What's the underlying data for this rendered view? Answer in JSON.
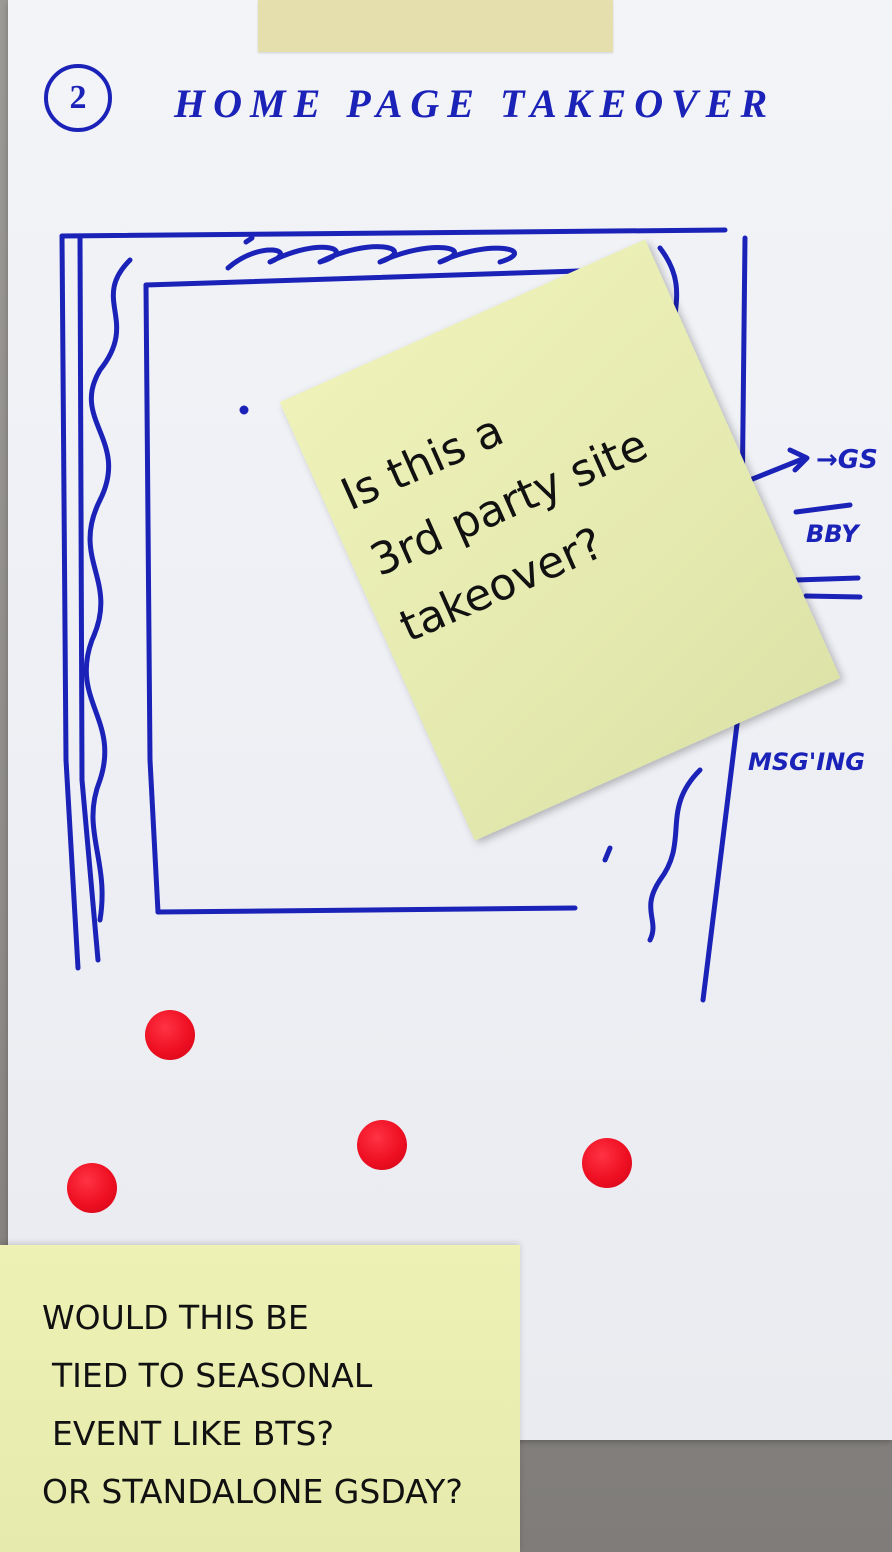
{
  "heading": {
    "number": "2",
    "title": "HOME PAGE TAKEOVER"
  },
  "side_notes": {
    "gs": "→GS",
    "bby": "BBY",
    "msg": "MSG'ING"
  },
  "sticky_note_question": {
    "lines": [
      "Is this a",
      "3rd party site",
      "takeover?"
    ]
  },
  "sticky_note_seasonal": {
    "lines": [
      "WOULD THIS BE",
      "TIED TO SEASONAL",
      "EVENT LIKE BTS?",
      "OR STANDALONE GSDAY?"
    ]
  },
  "colors": {
    "ink": "#1b22b8",
    "sticky": "#e6ebad",
    "dot": "#ee0f22"
  },
  "dot_count": 4
}
